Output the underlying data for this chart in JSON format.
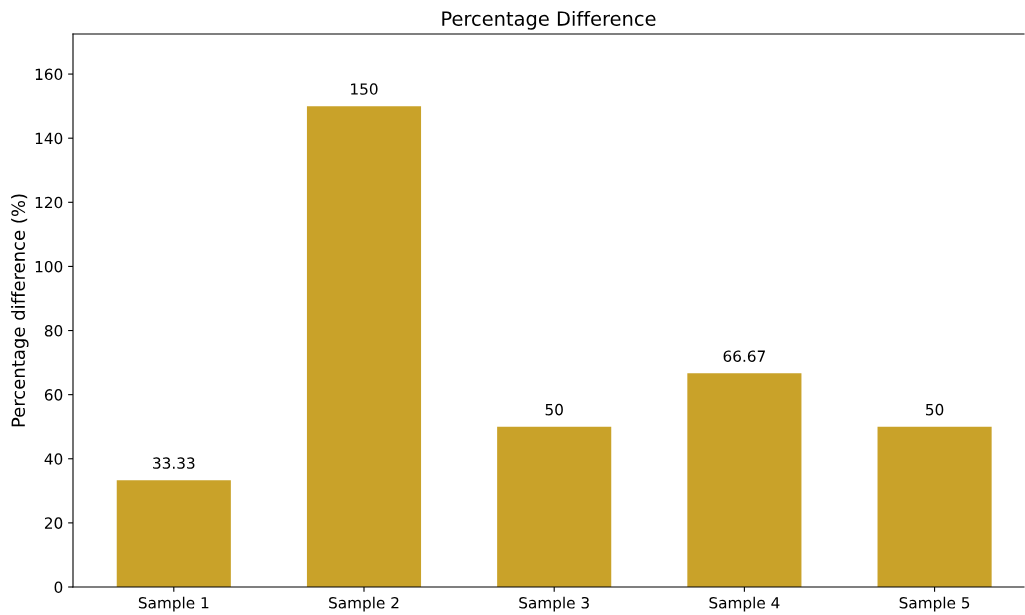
{
  "chart_data": {
    "type": "bar",
    "title": "Percentage Difference",
    "ylabel": "Percentage difference (%)",
    "categories": [
      "Sample 1",
      "Sample 2",
      "Sample 3",
      "Sample 4",
      "Sample 5"
    ],
    "values": [
      33.33,
      150,
      50,
      66.67,
      50
    ],
    "color": "#c9a229",
    "ylim": [
      0,
      172.5
    ],
    "yticks": [
      0,
      20,
      40,
      60,
      80,
      100,
      120,
      140,
      160
    ],
    "data_labels": true,
    "grid": false,
    "legend": false
  }
}
